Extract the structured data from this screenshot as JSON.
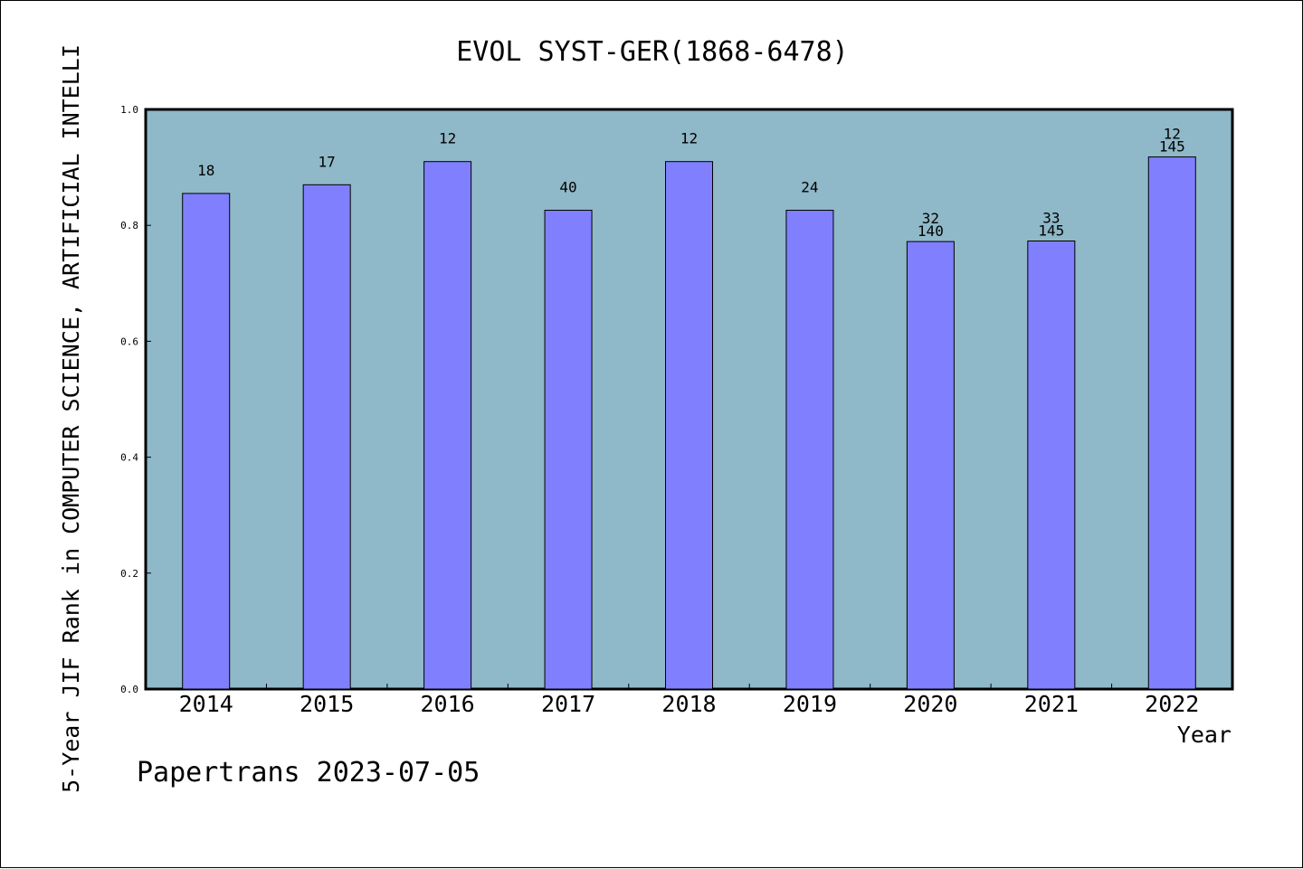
{
  "chart_data": {
    "type": "bar",
    "title": "EVOL SYST-GER(1868-6478)",
    "xlabel": "Year",
    "ylabel": "5-Year JIF Rank in COMPUTER SCIENCE, ARTIFICIAL INTELLI",
    "footer": "Papertrans 2023-07-05",
    "categories": [
      "2014",
      "2015",
      "2016",
      "2017",
      "2018",
      "2019",
      "2020",
      "2021",
      "2022"
    ],
    "values": [
      0.855,
      0.87,
      0.91,
      0.826,
      0.91,
      0.826,
      0.772,
      0.773,
      0.918
    ],
    "bar_labels": [
      "18",
      "17",
      "12",
      "40",
      "12",
      "24",
      "32",
      "33",
      "12"
    ],
    "bar_totals": [
      "",
      "",
      "",
      "",
      "",
      "",
      "140",
      "145",
      "145"
    ],
    "ylim": [
      0,
      1.0
    ],
    "yticks": [
      "0.0",
      "0.2",
      "0.4",
      "0.6",
      "0.8",
      "1.0"
    ],
    "grid": false,
    "colors": {
      "plot_background": "#8fb8c8",
      "bar_fill": "#8080ff",
      "bar_stroke": "#000000",
      "text": "#000000"
    }
  }
}
